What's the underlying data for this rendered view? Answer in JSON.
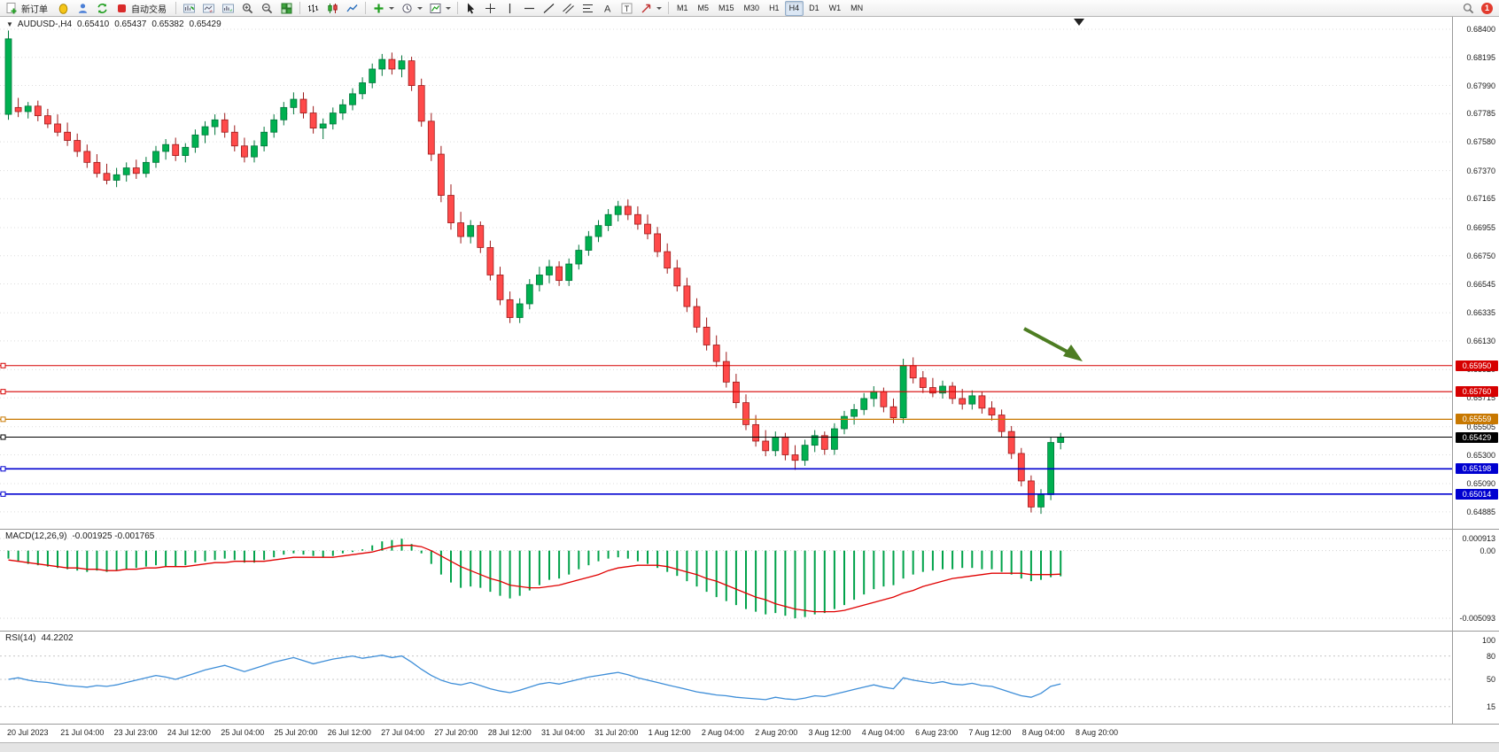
{
  "toolbar": {
    "new_order_label": "新订单",
    "autotrade_label": "自动交易",
    "timeframes": [
      "M1",
      "M5",
      "M15",
      "M30",
      "H1",
      "H4",
      "D1",
      "W1",
      "MN"
    ],
    "active_timeframe": "H4",
    "notification_count": "1",
    "icons": [
      "new-order-icon",
      "market-watch-icon",
      "profile-icon",
      "refresh-icon",
      "autotrade-icon",
      "data-window-icon",
      "chart-shift-icon",
      "auto-scroll-icon",
      "zoom-in-icon",
      "zoom-out-icon",
      "tile-windows-icon",
      "bar-chart-icon",
      "candlestick-chart-icon",
      "line-chart-icon",
      "add-indicator-icon",
      "period-icon",
      "template-icon",
      "cursor-icon",
      "crosshair-icon",
      "vertical-line-icon",
      "horizontal-line-icon",
      "trendline-icon",
      "channel-icon",
      "fibonacci-icon",
      "text-icon",
      "label-icon",
      "arrow-tool-icon",
      "search-icon"
    ]
  },
  "chart_header": {
    "collapse_marker": "▼",
    "symbol": "AUDUSD-,H4",
    "open": "0.65410",
    "high": "0.65437",
    "low": "0.65382",
    "close": "0.65429"
  },
  "chart_data": {
    "type": "candlestick",
    "symbol": "AUDUSD",
    "timeframe": "H4",
    "price_axis": [
      "0.68400",
      "0.68195",
      "0.67990",
      "0.67785",
      "0.67580",
      "0.67370",
      "0.67165",
      "0.66955",
      "0.66750",
      "0.66545",
      "0.66335",
      "0.66130",
      "0.65920",
      "0.65715",
      "0.65505",
      "0.65300",
      "0.65090",
      "0.64885"
    ],
    "price_lines": [
      {
        "label": "0.65950",
        "price": 0.6595,
        "color": "#d60000",
        "width": 1.1,
        "role": "resistance"
      },
      {
        "label": "0.65760",
        "price": 0.6576,
        "color": "#d60000",
        "width": 1.1,
        "role": "resistance"
      },
      {
        "label": "0.65559",
        "price": 0.65559,
        "color": "#c87800",
        "width": 1.3,
        "role": "level"
      },
      {
        "label": "0.65429",
        "price": 0.65429,
        "color": "#000000",
        "width": 1.0,
        "role": "current-price"
      },
      {
        "label": "0.65198",
        "price": 0.65198,
        "color": "#0000d0",
        "width": 1.6,
        "role": "support"
      },
      {
        "label": "0.65014",
        "price": 0.65014,
        "color": "#0000d0",
        "width": 1.6,
        "role": "support"
      }
    ],
    "candles": [
      [
        0.6778,
        0.6839,
        0.6774,
        0.6833
      ],
      [
        0.6783,
        0.679,
        0.6776,
        0.678
      ],
      [
        0.678,
        0.6787,
        0.6775,
        0.6784
      ],
      [
        0.6784,
        0.6788,
        0.6773,
        0.6777
      ],
      [
        0.6777,
        0.6782,
        0.6768,
        0.6771
      ],
      [
        0.6771,
        0.6778,
        0.6762,
        0.6765
      ],
      [
        0.6765,
        0.6772,
        0.6755,
        0.6759
      ],
      [
        0.6759,
        0.6764,
        0.6747,
        0.6751
      ],
      [
        0.6751,
        0.6756,
        0.6739,
        0.6743
      ],
      [
        0.6743,
        0.6749,
        0.6732,
        0.6735
      ],
      [
        0.6735,
        0.6742,
        0.6727,
        0.673
      ],
      [
        0.673,
        0.6739,
        0.6725,
        0.6734
      ],
      [
        0.6734,
        0.6743,
        0.6729,
        0.6739
      ],
      [
        0.6739,
        0.6745,
        0.6731,
        0.6735
      ],
      [
        0.6735,
        0.6747,
        0.6732,
        0.6743
      ],
      [
        0.6743,
        0.6755,
        0.6739,
        0.6751
      ],
      [
        0.6751,
        0.676,
        0.6745,
        0.6756
      ],
      [
        0.6756,
        0.6761,
        0.6744,
        0.6748
      ],
      [
        0.6748,
        0.6757,
        0.6743,
        0.6754
      ],
      [
        0.6754,
        0.6767,
        0.675,
        0.6763
      ],
      [
        0.6763,
        0.6773,
        0.6757,
        0.6769
      ],
      [
        0.6769,
        0.6778,
        0.6763,
        0.6774
      ],
      [
        0.6774,
        0.6779,
        0.6761,
        0.6765
      ],
      [
        0.6765,
        0.677,
        0.6751,
        0.6755
      ],
      [
        0.6755,
        0.6761,
        0.6743,
        0.6747
      ],
      [
        0.6747,
        0.6759,
        0.6743,
        0.6755
      ],
      [
        0.6755,
        0.6769,
        0.6751,
        0.6765
      ],
      [
        0.6765,
        0.6778,
        0.6761,
        0.6774
      ],
      [
        0.6774,
        0.6787,
        0.677,
        0.6783
      ],
      [
        0.6783,
        0.6794,
        0.6778,
        0.6789
      ],
      [
        0.6789,
        0.6794,
        0.6775,
        0.6779
      ],
      [
        0.6779,
        0.6784,
        0.6764,
        0.6768
      ],
      [
        0.6768,
        0.6775,
        0.676,
        0.6771
      ],
      [
        0.6771,
        0.6783,
        0.6767,
        0.6779
      ],
      [
        0.6779,
        0.6789,
        0.6774,
        0.6785
      ],
      [
        0.6785,
        0.6797,
        0.6781,
        0.6793
      ],
      [
        0.6793,
        0.6805,
        0.6789,
        0.6801
      ],
      [
        0.6801,
        0.6815,
        0.6797,
        0.6811
      ],
      [
        0.6811,
        0.6822,
        0.6806,
        0.6818
      ],
      [
        0.6818,
        0.6823,
        0.6807,
        0.6811
      ],
      [
        0.6811,
        0.6821,
        0.6805,
        0.6817
      ],
      [
        0.6817,
        0.682,
        0.6795,
        0.6799
      ],
      [
        0.6799,
        0.6804,
        0.6769,
        0.6773
      ],
      [
        0.6773,
        0.6779,
        0.6744,
        0.6749
      ],
      [
        0.6749,
        0.6755,
        0.6714,
        0.6719
      ],
      [
        0.6719,
        0.6727,
        0.6694,
        0.6699
      ],
      [
        0.6699,
        0.6707,
        0.6684,
        0.6689
      ],
      [
        0.6689,
        0.6701,
        0.6684,
        0.6697
      ],
      [
        0.6697,
        0.67,
        0.6677,
        0.6681
      ],
      [
        0.6681,
        0.6686,
        0.6657,
        0.6661
      ],
      [
        0.6661,
        0.6667,
        0.6639,
        0.6643
      ],
      [
        0.6643,
        0.6649,
        0.6626,
        0.663
      ],
      [
        0.663,
        0.6644,
        0.6626,
        0.664
      ],
      [
        0.664,
        0.6658,
        0.6636,
        0.6654
      ],
      [
        0.6654,
        0.6667,
        0.6649,
        0.6661
      ],
      [
        0.6661,
        0.6672,
        0.6655,
        0.6667
      ],
      [
        0.6667,
        0.6671,
        0.6653,
        0.6657
      ],
      [
        0.6657,
        0.6673,
        0.6653,
        0.6669
      ],
      [
        0.6669,
        0.6683,
        0.6665,
        0.6679
      ],
      [
        0.6679,
        0.6693,
        0.6675,
        0.6689
      ],
      [
        0.6689,
        0.6701,
        0.6685,
        0.6697
      ],
      [
        0.6697,
        0.6709,
        0.6693,
        0.6705
      ],
      [
        0.6705,
        0.6715,
        0.67,
        0.6711
      ],
      [
        0.6711,
        0.6716,
        0.6701,
        0.6705
      ],
      [
        0.6705,
        0.6711,
        0.6694,
        0.6698
      ],
      [
        0.6698,
        0.6705,
        0.6687,
        0.6691
      ],
      [
        0.6691,
        0.6696,
        0.6674,
        0.6678
      ],
      [
        0.6678,
        0.6684,
        0.6662,
        0.6666
      ],
      [
        0.6666,
        0.6672,
        0.6649,
        0.6653
      ],
      [
        0.6653,
        0.6659,
        0.6634,
        0.6638
      ],
      [
        0.6638,
        0.6644,
        0.6619,
        0.6623
      ],
      [
        0.6623,
        0.663,
        0.6606,
        0.661
      ],
      [
        0.661,
        0.6617,
        0.6594,
        0.6598
      ],
      [
        0.6598,
        0.6605,
        0.6579,
        0.6583
      ],
      [
        0.6583,
        0.6589,
        0.6564,
        0.6568
      ],
      [
        0.6568,
        0.6574,
        0.6548,
        0.6552
      ],
      [
        0.6552,
        0.6559,
        0.6536,
        0.654
      ],
      [
        0.654,
        0.6548,
        0.6529,
        0.6533
      ],
      [
        0.6533,
        0.6547,
        0.6529,
        0.6543
      ],
      [
        0.6543,
        0.6546,
        0.6526,
        0.653
      ],
      [
        0.653,
        0.6537,
        0.6519,
        0.6526
      ],
      [
        0.6526,
        0.6541,
        0.6522,
        0.6537
      ],
      [
        0.6537,
        0.6548,
        0.6532,
        0.6544
      ],
      [
        0.6544,
        0.6547,
        0.653,
        0.6534
      ],
      [
        0.6534,
        0.6553,
        0.653,
        0.6549
      ],
      [
        0.6549,
        0.6562,
        0.6545,
        0.6558
      ],
      [
        0.6558,
        0.6567,
        0.6552,
        0.6563
      ],
      [
        0.6563,
        0.6575,
        0.6559,
        0.6571
      ],
      [
        0.6571,
        0.658,
        0.6565,
        0.6576
      ],
      [
        0.6576,
        0.6579,
        0.6561,
        0.6565
      ],
      [
        0.6565,
        0.6571,
        0.6553,
        0.6557
      ],
      [
        0.6557,
        0.66,
        0.6553,
        0.6595
      ],
      [
        0.6595,
        0.6601,
        0.6582,
        0.6586
      ],
      [
        0.6586,
        0.6591,
        0.6575,
        0.6579
      ],
      [
        0.6579,
        0.6586,
        0.6572,
        0.6575
      ],
      [
        0.6575,
        0.6584,
        0.6571,
        0.658
      ],
      [
        0.658,
        0.6583,
        0.6567,
        0.6571
      ],
      [
        0.6571,
        0.6578,
        0.6563,
        0.6567
      ],
      [
        0.6567,
        0.6577,
        0.6563,
        0.6573
      ],
      [
        0.6573,
        0.6576,
        0.656,
        0.6564
      ],
      [
        0.6564,
        0.6569,
        0.6555,
        0.6559
      ],
      [
        0.6559,
        0.6563,
        0.6543,
        0.6547
      ],
      [
        0.6547,
        0.6551,
        0.6527,
        0.6531
      ],
      [
        0.6531,
        0.6535,
        0.6507,
        0.6511
      ],
      [
        0.6511,
        0.6515,
        0.6488,
        0.6492
      ],
      [
        0.6492,
        0.6505,
        0.6487,
        0.6501
      ],
      [
        0.6501,
        0.6543,
        0.6497,
        0.6539
      ],
      [
        0.6539,
        0.6546,
        0.6534,
        0.65429
      ]
    ],
    "time_axis": [
      "20 Jul 2023",
      "21 Jul 04:00",
      "23 Jul 23:00",
      "24 Jul 12:00",
      "25 Jul 04:00",
      "25 Jul 20:00",
      "26 Jul 12:00",
      "27 Jul 04:00",
      "27 Jul 20:00",
      "28 Jul 12:00",
      "31 Jul 04:00",
      "31 Jul 20:00",
      "1 Aug 12:00",
      "2 Aug 04:00",
      "2 Aug 20:00",
      "3 Aug 12:00",
      "4 Aug 04:00",
      "6 Aug 23:00",
      "7 Aug 12:00",
      "8 Aug 04:00",
      "8 Aug 20:00"
    ],
    "macd": {
      "name": "MACD(12,26,9)",
      "values_label": "-0.001925 -0.001765",
      "axis_max": "0.000913",
      "axis_zero": "0.00",
      "axis_min": "-0.005093",
      "histogram": [
        -0.0006,
        -0.0008,
        -0.001,
        -0.0011,
        -0.0012,
        -0.0013,
        -0.0014,
        -0.0015,
        -0.0016,
        -0.0015,
        -0.0016,
        -0.0015,
        -0.0014,
        -0.0013,
        -0.0012,
        -0.0011,
        -0.0012,
        -0.0012,
        -0.0011,
        -0.0009,
        -0.0008,
        -0.0007,
        -0.0006,
        -0.0007,
        -0.0009,
        -0.0009,
        -0.0007,
        -0.0005,
        -0.0003,
        -0.0002,
        -0.0003,
        -0.0004,
        -0.0005,
        -0.0004,
        -0.0002,
        -0.0001,
        0.0001,
        0.0004,
        0.0007,
        0.0008,
        0.0009,
        0.0005,
        -0.0002,
        -0.001,
        -0.0018,
        -0.0024,
        -0.0028,
        -0.0027,
        -0.0028,
        -0.0031,
        -0.0034,
        -0.0036,
        -0.0034,
        -0.003,
        -0.0026,
        -0.0022,
        -0.0021,
        -0.0018,
        -0.0014,
        -0.0011,
        -0.0008,
        -0.0006,
        -0.0005,
        -0.0006,
        -0.0008,
        -0.001,
        -0.0013,
        -0.0016,
        -0.0019,
        -0.0023,
        -0.0027,
        -0.0031,
        -0.0035,
        -0.0038,
        -0.0041,
        -0.0044,
        -0.0046,
        -0.0048,
        -0.0047,
        -0.0049,
        -0.0051,
        -0.005,
        -0.0048,
        -0.0047,
        -0.0044,
        -0.0041,
        -0.0037,
        -0.0033,
        -0.0029,
        -0.0027,
        -0.0026,
        -0.0021,
        -0.0018,
        -0.0016,
        -0.0015,
        -0.0014,
        -0.0014,
        -0.0013,
        -0.0013,
        -0.0014,
        -0.0014,
        -0.0016,
        -0.0018,
        -0.0021,
        -0.0023,
        -0.0022,
        -0.002,
        -0.00193
      ],
      "signal": [
        -0.0007,
        -0.0008,
        -0.0009,
        -0.001,
        -0.0011,
        -0.0012,
        -0.0013,
        -0.0013,
        -0.0014,
        -0.0014,
        -0.0015,
        -0.0015,
        -0.0014,
        -0.0014,
        -0.0013,
        -0.0013,
        -0.0012,
        -0.0012,
        -0.0012,
        -0.0011,
        -0.001,
        -0.0009,
        -0.0009,
        -0.0008,
        -0.0008,
        -0.0008,
        -0.0008,
        -0.0007,
        -0.0006,
        -0.0005,
        -0.0005,
        -0.0005,
        -0.0005,
        -0.0005,
        -0.0004,
        -0.0003,
        -0.0002,
        -0.0001,
        0.0001,
        0.0003,
        0.0004,
        0.0004,
        0.0003,
        0.0,
        -0.0004,
        -0.0008,
        -0.0012,
        -0.0015,
        -0.0018,
        -0.0021,
        -0.0023,
        -0.0026,
        -0.0027,
        -0.0028,
        -0.0028,
        -0.0027,
        -0.0026,
        -0.0024,
        -0.0022,
        -0.002,
        -0.0018,
        -0.0015,
        -0.0013,
        -0.0012,
        -0.0011,
        -0.0011,
        -0.0011,
        -0.0012,
        -0.0014,
        -0.0016,
        -0.0018,
        -0.0021,
        -0.0023,
        -0.0026,
        -0.0029,
        -0.0032,
        -0.0035,
        -0.0037,
        -0.004,
        -0.0042,
        -0.0044,
        -0.0045,
        -0.0046,
        -0.0046,
        -0.0046,
        -0.0045,
        -0.0043,
        -0.0041,
        -0.0039,
        -0.0037,
        -0.0035,
        -0.0032,
        -0.003,
        -0.0027,
        -0.0025,
        -0.0023,
        -0.0021,
        -0.002,
        -0.0019,
        -0.0018,
        -0.0017,
        -0.0017,
        -0.0017,
        -0.0017,
        -0.0018,
        -0.0018,
        -0.0018,
        -0.00177
      ]
    },
    "rsi": {
      "name": "RSI(14)",
      "value_label": "44.2202",
      "axis": [
        "100",
        "80",
        "50",
        "15"
      ],
      "levels": [
        80,
        50,
        15
      ],
      "values": [
        50,
        52,
        49,
        47,
        46,
        44,
        42,
        41,
        40,
        42,
        41,
        43,
        46,
        49,
        52,
        55,
        53,
        50,
        54,
        58,
        62,
        65,
        68,
        64,
        60,
        64,
        68,
        72,
        75,
        78,
        74,
        70,
        73,
        76,
        78,
        80,
        77,
        79,
        81,
        78,
        80,
        72,
        63,
        55,
        49,
        45,
        43,
        46,
        42,
        38,
        35,
        33,
        36,
        40,
        44,
        46,
        44,
        47,
        50,
        53,
        55,
        57,
        59,
        56,
        52,
        49,
        46,
        43,
        40,
        37,
        34,
        32,
        30,
        29,
        27,
        26,
        25,
        24,
        27,
        25,
        24,
        26,
        29,
        28,
        31,
        34,
        37,
        40,
        43,
        40,
        38,
        52,
        49,
        47,
        45,
        47,
        44,
        43,
        45,
        42,
        41,
        37,
        33,
        29,
        27,
        32,
        41,
        44.22
      ]
    },
    "annotations": [
      {
        "type": "arrow",
        "color": "#4d7d22",
        "note": "hand-drawn arrow pointing to 0.65950 resistance line"
      }
    ]
  }
}
